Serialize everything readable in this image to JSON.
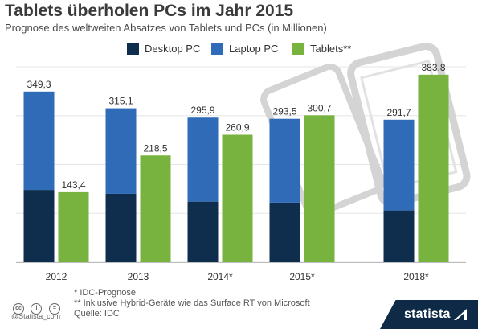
{
  "chart_data": {
    "type": "bar",
    "title": "Tablets überholen PCs im Jahr 2015",
    "subtitle": "Prognose des weltweiten Absatzes von Tablets und PCs (in Millionen)",
    "categories": [
      "2012",
      "2013",
      "2014*",
      "2015*",
      "2018*"
    ],
    "stacked_group": [
      "Desktop PC",
      "Laptop PC"
    ],
    "series": [
      {
        "name": "Desktop PC",
        "color": "#0f2d4c",
        "values": [
          148,
          140,
          124,
          122,
          106
        ]
      },
      {
        "name": "Laptop PC",
        "color": "#2f6bb6",
        "values": [
          201.3,
          175.1,
          171.9,
          171.5,
          185.7
        ]
      },
      {
        "name": "Tablets**",
        "color": "#77b33e",
        "values": [
          143.4,
          218.5,
          260.9,
          300.7,
          383.8
        ]
      }
    ],
    "total_labels": [
      "349,3",
      "315,1",
      "295,9",
      "293,5",
      "291,7"
    ],
    "tablet_labels": [
      "143,4",
      "218,5",
      "260,9",
      "300,7",
      "383,8"
    ],
    "ylim": [
      0,
      400
    ],
    "grid": true,
    "legend_position": "top"
  },
  "notes": [
    "* IDC-Prognose",
    "** Inklusive Hybrid-Geräte wie das Surface RT von Microsoft",
    "Quelle: IDC"
  ],
  "credit": "@Statista_com",
  "brand": "statista",
  "cc_icons": [
    "cc",
    "i",
    "="
  ],
  "decoration_icon": "tablet-outline-icon"
}
